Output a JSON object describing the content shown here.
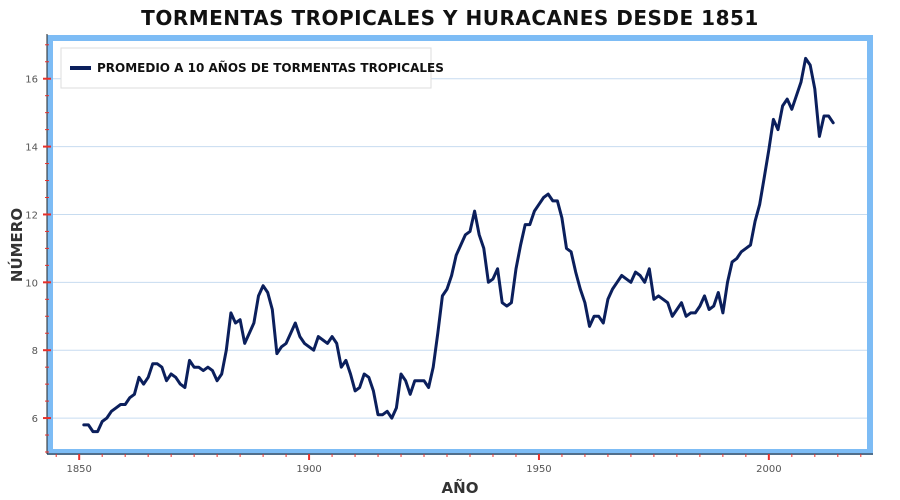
{
  "chart_data": {
    "type": "line",
    "title": "TORMENTAS TROPICALES Y HURACANES DESDE 1851",
    "xlabel": "AÑO",
    "ylabel": "NÚMERO",
    "xlim": [
      1843,
      2022
    ],
    "ylim": [
      5,
      17.2
    ],
    "x_ticks": [
      1850,
      1900,
      1950,
      2000
    ],
    "y_ticks": [
      6,
      8,
      10,
      12,
      14,
      16
    ],
    "grid": "horizontal",
    "legend_position": "top-left",
    "colors": {
      "line": "#0b1f5c",
      "frame": "#7dbcf5",
      "grid": "#c7dcf0",
      "tick_mark": "#e8302b",
      "axis": "#222222"
    },
    "series": [
      {
        "name": "PROMEDIO A 10 AÑOS DE TORMENTAS TROPICALES",
        "x": [
          1851,
          1852,
          1853,
          1854,
          1855,
          1856,
          1857,
          1858,
          1859,
          1860,
          1861,
          1862,
          1863,
          1864,
          1865,
          1866,
          1867,
          1868,
          1869,
          1870,
          1871,
          1872,
          1873,
          1874,
          1875,
          1876,
          1877,
          1878,
          1879,
          1880,
          1881,
          1882,
          1883,
          1884,
          1885,
          1886,
          1887,
          1888,
          1889,
          1890,
          1891,
          1892,
          1893,
          1894,
          1895,
          1896,
          1897,
          1898,
          1899,
          1900,
          1901,
          1902,
          1903,
          1904,
          1905,
          1906,
          1907,
          1908,
          1909,
          1910,
          1911,
          1912,
          1913,
          1914,
          1915,
          1916,
          1917,
          1918,
          1919,
          1920,
          1921,
          1922,
          1923,
          1924,
          1925,
          1926,
          1927,
          1928,
          1929,
          1930,
          1931,
          1932,
          1933,
          1934,
          1935,
          1936,
          1937,
          1938,
          1939,
          1940,
          1941,
          1942,
          1943,
          1944,
          1945,
          1946,
          1947,
          1948,
          1949,
          1950,
          1951,
          1952,
          1953,
          1954,
          1955,
          1956,
          1957,
          1958,
          1959,
          1960,
          1961,
          1962,
          1963,
          1964,
          1965,
          1966,
          1967,
          1968,
          1969,
          1970,
          1971,
          1972,
          1973,
          1974,
          1975,
          1976,
          1977,
          1978,
          1979,
          1980,
          1981,
          1982,
          1983,
          1984,
          1985,
          1986,
          1987,
          1988,
          1989,
          1990,
          1991,
          1992,
          1993,
          1994,
          1995,
          1996,
          1997,
          1998,
          1999,
          2000,
          2001,
          2002,
          2003,
          2004,
          2005,
          2006,
          2007,
          2008,
          2009,
          2010,
          2011,
          2012,
          2013,
          2014
        ],
        "values": [
          5.8,
          5.8,
          5.6,
          5.6,
          5.9,
          6.0,
          6.2,
          6.3,
          6.4,
          6.4,
          6.6,
          6.7,
          7.2,
          7.0,
          7.2,
          7.6,
          7.6,
          7.5,
          7.1,
          7.3,
          7.2,
          7.0,
          6.9,
          7.7,
          7.5,
          7.5,
          7.4,
          7.5,
          7.4,
          7.1,
          7.3,
          8.0,
          9.1,
          8.8,
          8.9,
          8.2,
          8.5,
          8.8,
          9.6,
          9.9,
          9.7,
          9.2,
          7.9,
          8.1,
          8.2,
          8.5,
          8.8,
          8.4,
          8.2,
          8.1,
          8.0,
          8.4,
          8.3,
          8.2,
          8.4,
          8.2,
          7.5,
          7.7,
          7.3,
          6.8,
          6.9,
          7.3,
          7.2,
          6.8,
          6.1,
          6.1,
          6.2,
          6.0,
          6.3,
          7.3,
          7.1,
          6.7,
          7.1,
          7.1,
          7.1,
          6.9,
          7.5,
          8.5,
          9.6,
          9.8,
          10.2,
          10.8,
          11.1,
          11.4,
          11.5,
          12.1,
          11.4,
          11.0,
          10.0,
          10.1,
          10.4,
          9.4,
          9.3,
          9.4,
          10.4,
          11.1,
          11.7,
          11.7,
          12.1,
          12.3,
          12.5,
          12.6,
          12.4,
          12.4,
          11.9,
          11.0,
          10.9,
          10.3,
          9.8,
          9.4,
          8.7,
          9.0,
          9.0,
          8.8,
          9.5,
          9.8,
          10.0,
          10.2,
          10.1,
          10.0,
          10.3,
          10.2,
          10.0,
          10.4,
          9.5,
          9.6,
          9.5,
          9.4,
          9.0,
          9.2,
          9.4,
          9.0,
          9.1,
          9.1,
          9.3,
          9.6,
          9.2,
          9.3,
          9.7,
          9.1,
          10.0,
          10.6,
          10.7,
          10.9,
          11.0,
          11.1,
          11.8,
          12.3,
          13.1,
          13.9,
          14.8,
          14.5,
          15.2,
          15.4,
          15.1,
          15.5,
          15.9,
          16.6,
          16.4,
          15.7,
          14.3,
          14.9,
          14.9,
          14.7
        ]
      }
    ]
  }
}
